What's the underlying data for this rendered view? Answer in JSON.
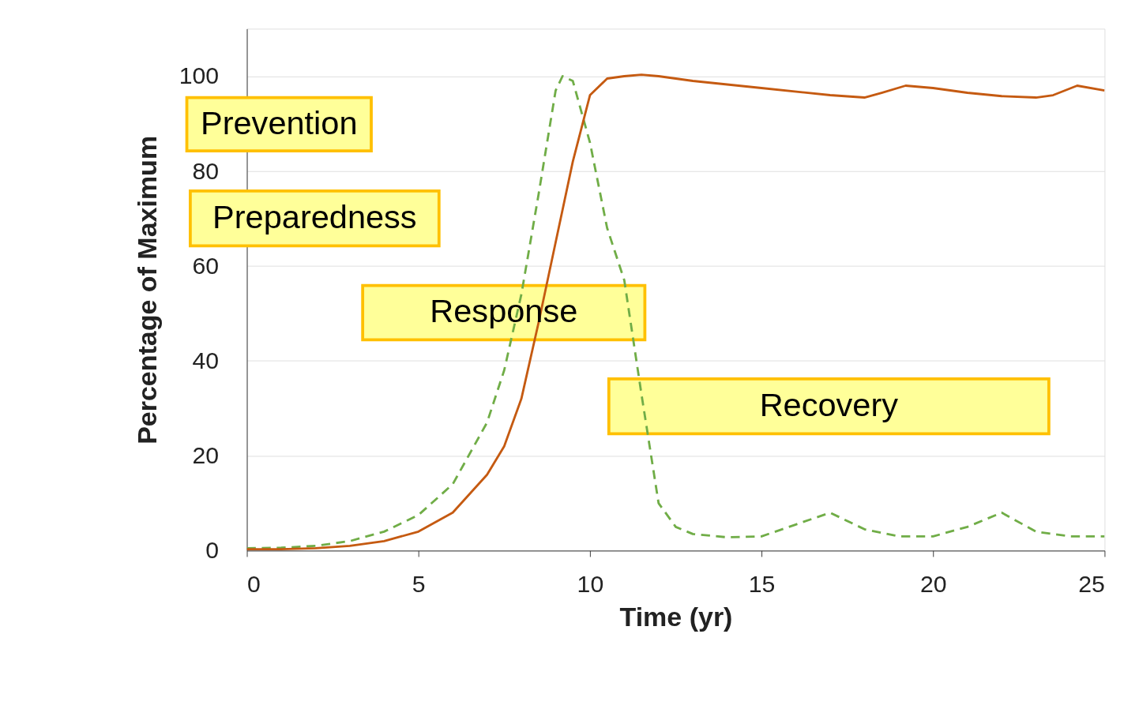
{
  "chart_data": {
    "type": "line",
    "xlabel": "Time (yr)",
    "ylabel": "Percentage of Maximum",
    "xlim": [
      0,
      25
    ],
    "xticks": [
      0,
      5,
      10,
      15,
      20,
      25
    ],
    "ylim": [
      0,
      110
    ],
    "yticks": [
      0,
      20,
      40,
      60,
      80,
      100
    ],
    "grid": "y",
    "legend": false,
    "marker": "none",
    "annotations": [
      "Prevention",
      "Preparedness",
      "Response",
      "Recovery"
    ],
    "series": [
      {
        "color": "#70ad47",
        "line_style": "dashed",
        "x": [
          0,
          1,
          2,
          3,
          4,
          5,
          6,
          7,
          7.5,
          8,
          8.5,
          9,
          9.2,
          9.5,
          10,
          10.5,
          11,
          11.5,
          12,
          12.5,
          13,
          14,
          15,
          16,
          17,
          18,
          19,
          20,
          21,
          22,
          23,
          24,
          25
        ],
        "values": [
          0.5,
          0.6,
          1,
          2,
          4,
          7.5,
          14,
          27,
          38,
          54,
          75,
          97,
          100,
          99,
          86,
          68,
          57,
          33,
          10,
          5,
          3.5,
          2.8,
          3,
          5.5,
          8,
          4.5,
          3,
          3,
          5,
          8,
          4,
          3,
          3
        ]
      },
      {
        "color": "#c55a11",
        "line_style": "solid",
        "x": [
          0,
          1,
          2,
          3,
          4,
          5,
          6,
          7,
          7.5,
          8,
          8.5,
          9,
          9.5,
          10,
          10.5,
          11,
          11.5,
          12,
          13,
          15,
          17,
          18,
          18.5,
          19.2,
          20,
          21,
          22,
          23,
          23.5,
          24.2,
          25
        ],
        "values": [
          0.3,
          0.3,
          0.5,
          1,
          2,
          4,
          8,
          16,
          22,
          32,
          48,
          65,
          82,
          96,
          99.5,
          100,
          100.3,
          100,
          99,
          97.5,
          96,
          95.5,
          96.5,
          98,
          97.5,
          96.5,
          95.8,
          95.5,
          96,
          98,
          97
        ]
      }
    ]
  }
}
